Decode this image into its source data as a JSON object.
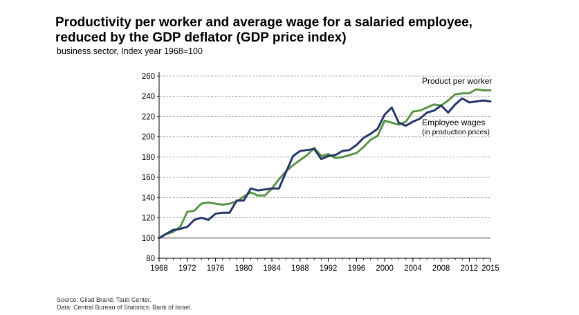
{
  "header": {
    "title_line1": "Productivity per worker and average wage for a salaried employee,",
    "title_line2": "reduced by the GDP deflator (GDP price index)",
    "subtitle": "business sector, Index year 1968=100"
  },
  "footer": {
    "source_line1": "Source: Gilad Brand, Taub Center.",
    "source_line2": "Data: Central Bureau of Statistics; Bank of Israel."
  },
  "colors": {
    "product_series": "#5a9447",
    "wages_series": "#24366a",
    "baseline": "#888888",
    "grid": "#999999"
  },
  "chart_data": {
    "type": "line",
    "title": "Productivity per worker and average wage for a salaried employee, reduced by the GDP deflator (GDP price index)",
    "subtitle": "business sector, Index year 1968=100",
    "xlabel": "",
    "ylabel": "",
    "xlim": [
      1968,
      2015
    ],
    "ylim": [
      80,
      260
    ],
    "yticks": [
      80,
      100,
      120,
      140,
      160,
      180,
      200,
      220,
      240,
      260
    ],
    "xticks": [
      1968,
      1972,
      1976,
      1980,
      1984,
      1988,
      1992,
      1996,
      2000,
      2004,
      2008,
      2012,
      2015
    ],
    "grid": "horizontal-dashed",
    "x": [
      1968,
      1969,
      1970,
      1971,
      1972,
      1973,
      1974,
      1975,
      1976,
      1977,
      1978,
      1979,
      1980,
      1981,
      1982,
      1983,
      1984,
      1985,
      1986,
      1987,
      1988,
      1989,
      1990,
      1991,
      1992,
      1993,
      1994,
      1995,
      1996,
      1997,
      1998,
      1999,
      2000,
      2001,
      2002,
      2003,
      2004,
      2005,
      2006,
      2007,
      2008,
      2009,
      2010,
      2011,
      2012,
      2013,
      2014,
      2015
    ],
    "series": [
      {
        "name": "Product per worker",
        "label_lines": [
          "Product per worker"
        ],
        "color": "#5a9447",
        "values": [
          100,
          104,
          106,
          111,
          126,
          127,
          134,
          135,
          134,
          133,
          134,
          136,
          141,
          145,
          142,
          142,
          149,
          158,
          166,
          172,
          177,
          182,
          189,
          181,
          183,
          179,
          180,
          182,
          184,
          190,
          197,
          201,
          216,
          214,
          212,
          215,
          225,
          226,
          229,
          232,
          231,
          236,
          242,
          243,
          243,
          247,
          246,
          246
        ]
      },
      {
        "name": "Employee wages",
        "label_lines": [
          "Employee wages",
          "(in production prices)"
        ],
        "color": "#24366a",
        "values": [
          100,
          104,
          108,
          109,
          111,
          118,
          120,
          118,
          124,
          125,
          125,
          137,
          137,
          149,
          147,
          148,
          149,
          149,
          165,
          181,
          186,
          187,
          188,
          178,
          181,
          182,
          186,
          187,
          192,
          199,
          203,
          208,
          222,
          229,
          214,
          211,
          215,
          218,
          224,
          226,
          231,
          224,
          232,
          238,
          234,
          235,
          236,
          235
        ]
      }
    ]
  }
}
